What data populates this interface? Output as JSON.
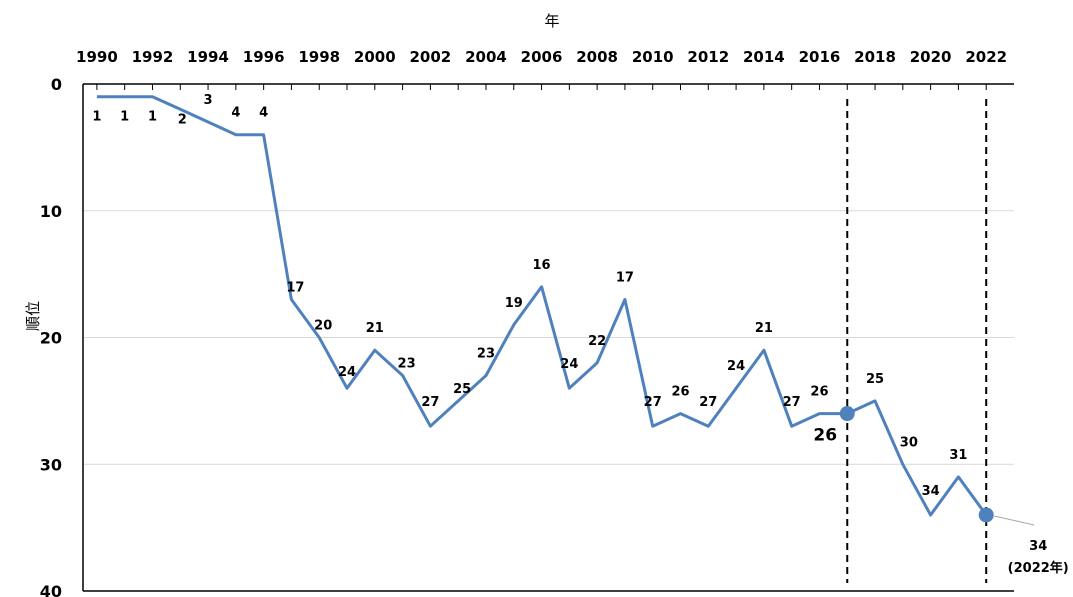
{
  "chart_data": {
    "type": "line",
    "xlabel": "年",
    "ylabel": "順位",
    "x_ticks": [
      "1990",
      "1992",
      "1994",
      "1996",
      "1998",
      "2000",
      "2002",
      "2004",
      "2006",
      "2008",
      "2010",
      "2012",
      "2014",
      "2016",
      "2018",
      "2020",
      "2022"
    ],
    "y_ticks": [
      "0",
      "10",
      "20",
      "30",
      "40"
    ],
    "ylim": [
      0,
      40
    ],
    "y_inverted": true,
    "x_axis_position": "top",
    "grid": "horizontal",
    "line_color": "#4f81bd",
    "series": [
      {
        "x": [
          1990,
          1991,
          1992,
          1993,
          1994,
          1995,
          1996,
          1997,
          1998,
          1999,
          2000,
          2001,
          2002,
          2003,
          2004,
          2005,
          2006,
          2007,
          2008,
          2009,
          2010,
          2011,
          2012,
          2013,
          2014,
          2015,
          2016,
          2017,
          2018,
          2019,
          2020,
          2021,
          2022
        ],
        "values": [
          1,
          1,
          1,
          2,
          3,
          4,
          4,
          17,
          20,
          24,
          21,
          23,
          27,
          25,
          23,
          19,
          16,
          24,
          22,
          17,
          27,
          26,
          27,
          24,
          21,
          27,
          26,
          26,
          25,
          30,
          34,
          31,
          34
        ],
        "labels": [
          "1",
          "1",
          "1",
          "2",
          "3",
          "4",
          "4",
          "17",
          "20",
          "24",
          "21",
          "23",
          "27",
          "25",
          "23",
          "19",
          "16",
          "24",
          "22",
          "17",
          "27",
          "26",
          "27",
          "24",
          "21",
          "27",
          "26",
          "26",
          "25",
          "30",
          "34",
          "31",
          "34"
        ]
      }
    ],
    "highlights": [
      {
        "x": 2017,
        "value": 26,
        "label": "26"
      },
      {
        "x": 2022,
        "value": 34,
        "label": "34",
        "sublabel": "(2022年)"
      }
    ],
    "vertical_dashed_lines": [
      2017,
      2022
    ]
  }
}
